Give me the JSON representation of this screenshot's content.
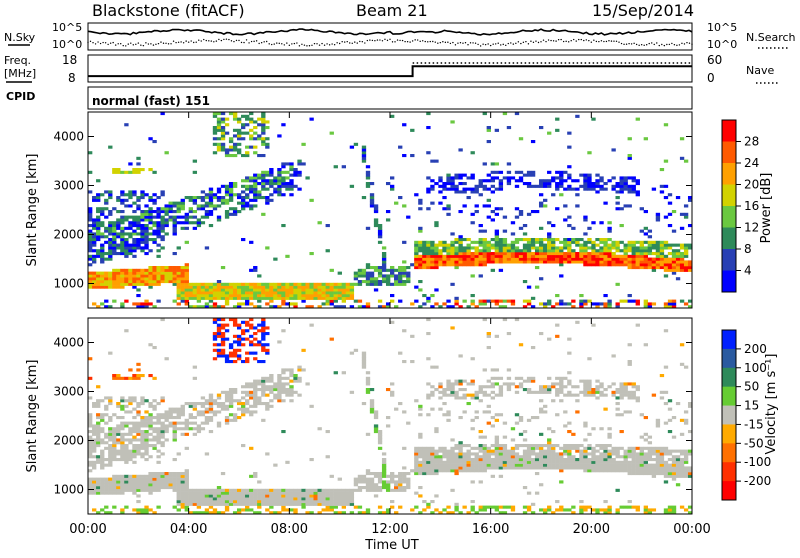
{
  "header": {
    "station": "Blackstone (fitACF)",
    "beam": "Beam 21",
    "date": "15/Sep/2014"
  },
  "noise_panel": {
    "left_label": "N.Sky",
    "right_label": "N.Search",
    "ticks": [
      "10^5",
      "10^0"
    ]
  },
  "freq_panel": {
    "left_label_1": "Freq.",
    "left_label_2": "[MHz]",
    "left_ticks": [
      "18",
      "8"
    ],
    "right_label": "Nave",
    "right_ticks": [
      "60",
      "0"
    ]
  },
  "cpid_panel": {
    "label": "CPID",
    "text": "normal (fast) 151"
  },
  "power_colorbar": {
    "label": "Power [dB]",
    "ticks": [
      "28",
      "24",
      "20",
      "16",
      "12",
      "8",
      "4"
    ],
    "colors": [
      "#ff0000",
      "#ff5a00",
      "#ffa000",
      "#d2d200",
      "#6ac840",
      "#2e8a5a",
      "#2840b4",
      "#0000ff"
    ]
  },
  "velocity_colorbar": {
    "label": "Velocity [m s⁻¹]",
    "ticks": [
      "200",
      "100",
      "50",
      "15",
      "-15",
      "-50",
      "-100",
      "-200"
    ],
    "colors": [
      "#0020ff",
      "#2a5aa0",
      "#2e8a5a",
      "#66cc33",
      "#c0c0b8",
      "#ffaa00",
      "#ff7000",
      "#ff3000",
      "#ff0000"
    ]
  },
  "chart_data": [
    {
      "type": "heatmap",
      "title": "Power",
      "ylabel": "Slant Range [km]",
      "yticks": [
        "1000",
        "2000",
        "3000",
        "4000"
      ],
      "ylim": [
        500,
        4500
      ],
      "xlim": [
        0,
        24
      ]
    },
    {
      "type": "heatmap",
      "title": "Velocity",
      "ylabel": "Slant Range [km]",
      "yticks": [
        "1000",
        "2000",
        "3000",
        "4000"
      ],
      "ylim": [
        500,
        4500
      ],
      "xlim": [
        0,
        24
      ]
    },
    {
      "type": "line",
      "title": "Frequency",
      "x": [
        0,
        12.9,
        12.9,
        24
      ],
      "y": [
        10.2,
        10.2,
        13.8,
        13.8
      ]
    }
  ],
  "xaxis": {
    "label": "Time UT",
    "ticks": [
      "00:00",
      "04:00",
      "08:00",
      "12:00",
      "16:00",
      "20:00",
      "00:00"
    ]
  }
}
